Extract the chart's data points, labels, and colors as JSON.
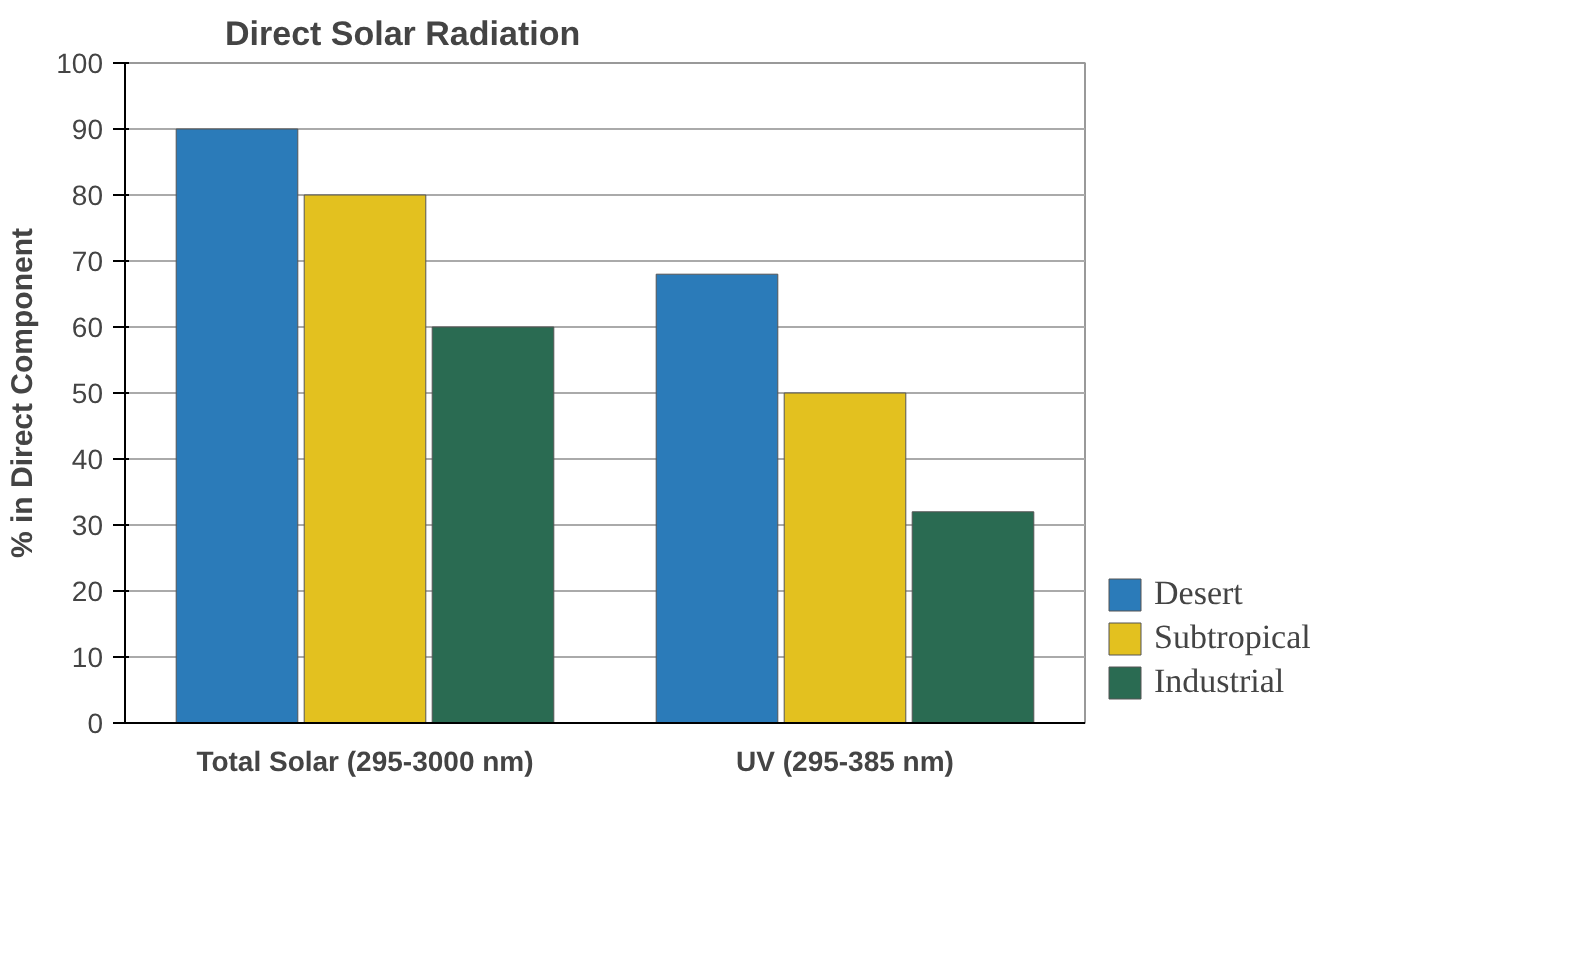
{
  "chart_data": {
    "type": "bar",
    "title": "Direct Solar Radiation",
    "ylabel": "% in Direct Component",
    "categories": [
      "Total Solar (295-3000 nm)",
      "UV (295-385 nm)"
    ],
    "series": [
      {
        "name": "Desert",
        "color": "#2b7bb9",
        "values": [
          90,
          68
        ]
      },
      {
        "name": "Subtropical",
        "color": "#e3c11f",
        "values": [
          80,
          50
        ]
      },
      {
        "name": "Industrial",
        "color": "#2a6b52",
        "values": [
          60,
          32
        ]
      }
    ],
    "ylim": [
      0,
      100
    ],
    "yticks": [
      0,
      10,
      20,
      30,
      40,
      50,
      60,
      70,
      80,
      90,
      100
    ],
    "grid": "y",
    "legend": "bottom right"
  }
}
